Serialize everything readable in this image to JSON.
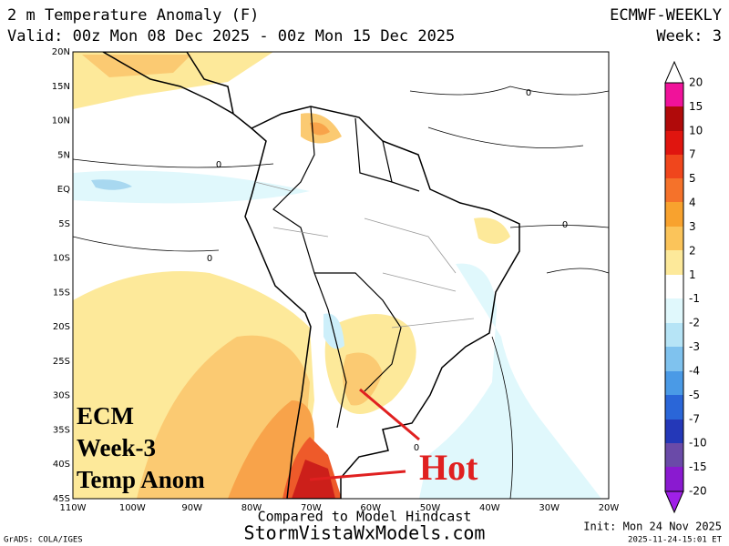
{
  "header": {
    "title": "2 m Temperature Anomaly (F)",
    "valid": "Valid: 00z Mon 08 Dec 2025 - 00z Mon 15 Dec 2025",
    "model": "ECMWF-WEEKLY",
    "week": "Week: 3"
  },
  "map": {
    "lat_labels": [
      "20N",
      "15N",
      "10N",
      "5N",
      "EQ",
      "5S",
      "10S",
      "15S",
      "20S",
      "25S",
      "30S",
      "35S",
      "40S",
      "45S"
    ],
    "lon_labels": [
      "110W",
      "100W",
      "90W",
      "80W",
      "70W",
      "60W",
      "50W",
      "40W",
      "30W",
      "20W"
    ],
    "contour_labels": [
      "0",
      "0",
      "0",
      "0",
      "0"
    ],
    "overlay": [
      "ECM",
      "Week-3",
      "Temp Anom"
    ],
    "callout": "Hot"
  },
  "colorbar": {
    "labels": [
      "20",
      "15",
      "10",
      "7",
      "5",
      "4",
      "3",
      "2",
      "1",
      "-1",
      "-2",
      "-3",
      "-4",
      "-5",
      "-7",
      "-10",
      "-15",
      "-20"
    ]
  },
  "footer": {
    "note": "Compared to Model Hindcast",
    "site": "StormVistaWxModels.com",
    "init": "Init: Mon 24 Nov 2025",
    "stamp": "2025-11-24-15:01 ET",
    "credit": "GrADS: COLA/IGES"
  }
}
